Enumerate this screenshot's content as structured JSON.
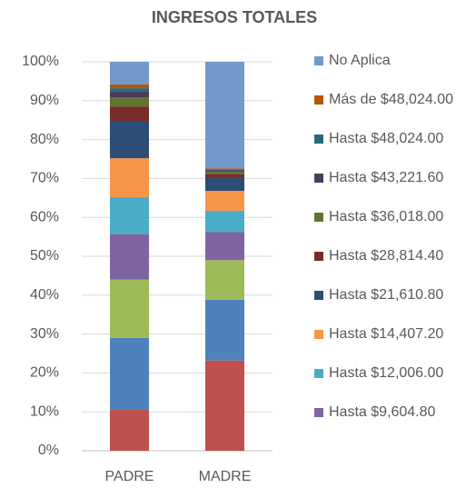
{
  "chart_data": {
    "type": "stacked_bar_percent",
    "title": "INGRESOS TOTALES",
    "categories": [
      "PADRE",
      "MADRE"
    ],
    "ylim": [
      0,
      100
    ],
    "yticks": [
      {
        "value": 0,
        "label": "0%"
      },
      {
        "value": 10,
        "label": "10%"
      },
      {
        "value": 20,
        "label": "20%"
      },
      {
        "value": 30,
        "label": "30%"
      },
      {
        "value": 40,
        "label": "40%"
      },
      {
        "value": 50,
        "label": "50%"
      },
      {
        "value": 60,
        "label": "60%"
      },
      {
        "value": 70,
        "label": "70%"
      },
      {
        "value": 80,
        "label": "80%"
      },
      {
        "value": 90,
        "label": "90%"
      },
      {
        "value": 100,
        "label": "100%"
      }
    ],
    "grid": true,
    "series": [
      {
        "color": "#c0504d",
        "values": [
          10.5,
          23.2
        ]
      },
      {
        "color": "#4f81bd",
        "values": [
          18.5,
          15.6
        ]
      },
      {
        "color": "#9bbb59",
        "values": [
          15,
          10.2
        ]
      },
      {
        "name": "Hasta $9,604.80",
        "color": "#8064a2",
        "values": [
          11.7,
          7.2
        ]
      },
      {
        "name": "Hasta $12,006.00",
        "color": "#4bacc6",
        "values": [
          9.5,
          5.5
        ]
      },
      {
        "name": "Hasta $14,407.20",
        "color": "#f79646",
        "values": [
          10,
          5.1
        ]
      },
      {
        "name": "Hasta $21,610.80",
        "color": "#2c4d75",
        "values": [
          9.5,
          3.4
        ]
      },
      {
        "name": "Hasta $28,814.40",
        "color": "#772c2a",
        "values": [
          3.8,
          1.0
        ]
      },
      {
        "name": "Hasta $36,018.00",
        "color": "#5f7530",
        "values": [
          2.3,
          0.5
        ]
      },
      {
        "name": "Hasta $43,221.60",
        "color": "#4d3b62",
        "values": [
          1.5,
          0.4
        ]
      },
      {
        "name": "Hasta $48,024.00",
        "color": "#276a7c",
        "values": [
          0.9,
          0.3
        ]
      },
      {
        "name": "Más de $48,024.00",
        "color": "#b65708",
        "values": [
          1,
          0.2
        ]
      },
      {
        "name": "No Aplica",
        "color": "#729aca",
        "values": [
          5.8,
          27.4
        ]
      }
    ]
  }
}
